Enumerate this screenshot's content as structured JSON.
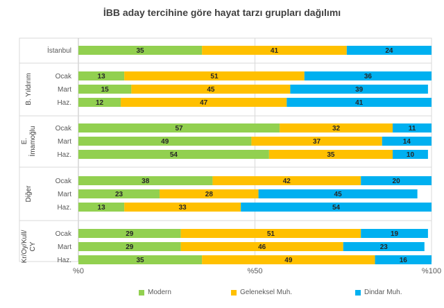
{
  "chart_data": {
    "type": "bar",
    "stacked": true,
    "orientation": "horizontal",
    "title": "İBB aday tercihine göre hayat tarzı grupları dağılımı",
    "xlim": [
      0,
      100
    ],
    "x_ticks": [
      "%0",
      "%50",
      "%100"
    ],
    "grid": true,
    "legend_position": "bottom",
    "groups": [
      {
        "label": "",
        "rows": [
          {
            "label": "İstanbul",
            "values": [
              35,
              41,
              24
            ]
          }
        ]
      },
      {
        "label": "B. Yıldırım",
        "rows": [
          {
            "label": "Ocak",
            "values": [
              13,
              51,
              36
            ]
          },
          {
            "label": "Mart",
            "values": [
              15,
              45,
              39
            ]
          },
          {
            "label": "Haz.",
            "values": [
              12,
              47,
              41
            ]
          }
        ]
      },
      {
        "label": "E. İmamoğlu",
        "rows": [
          {
            "label": "Ocak",
            "values": [
              57,
              32,
              11
            ]
          },
          {
            "label": "Mart",
            "values": [
              49,
              37,
              14
            ]
          },
          {
            "label": "Haz.",
            "values": [
              54,
              35,
              10
            ]
          }
        ]
      },
      {
        "label": "Diğer",
        "rows": [
          {
            "label": "Ocak",
            "values": [
              38,
              42,
              20
            ]
          },
          {
            "label": "Mart",
            "values": [
              23,
              28,
              45
            ]
          },
          {
            "label": "Haz.",
            "values": [
              13,
              33,
              54
            ]
          }
        ]
      },
      {
        "label": "Kr/Oy/Kull/ CY",
        "rows": [
          {
            "label": "Ocak",
            "values": [
              29,
              51,
              19
            ]
          },
          {
            "label": "Mart",
            "values": [
              29,
              46,
              23
            ]
          },
          {
            "label": "Haz.",
            "values": [
              35,
              49,
              16
            ]
          }
        ]
      }
    ],
    "series": [
      {
        "name": "Modern",
        "color": "#92d050"
      },
      {
        "name": "Geleneksel Muh.",
        "color": "#ffc000"
      },
      {
        "name": "Dindar Muh.",
        "color": "#00b0f0"
      }
    ]
  }
}
